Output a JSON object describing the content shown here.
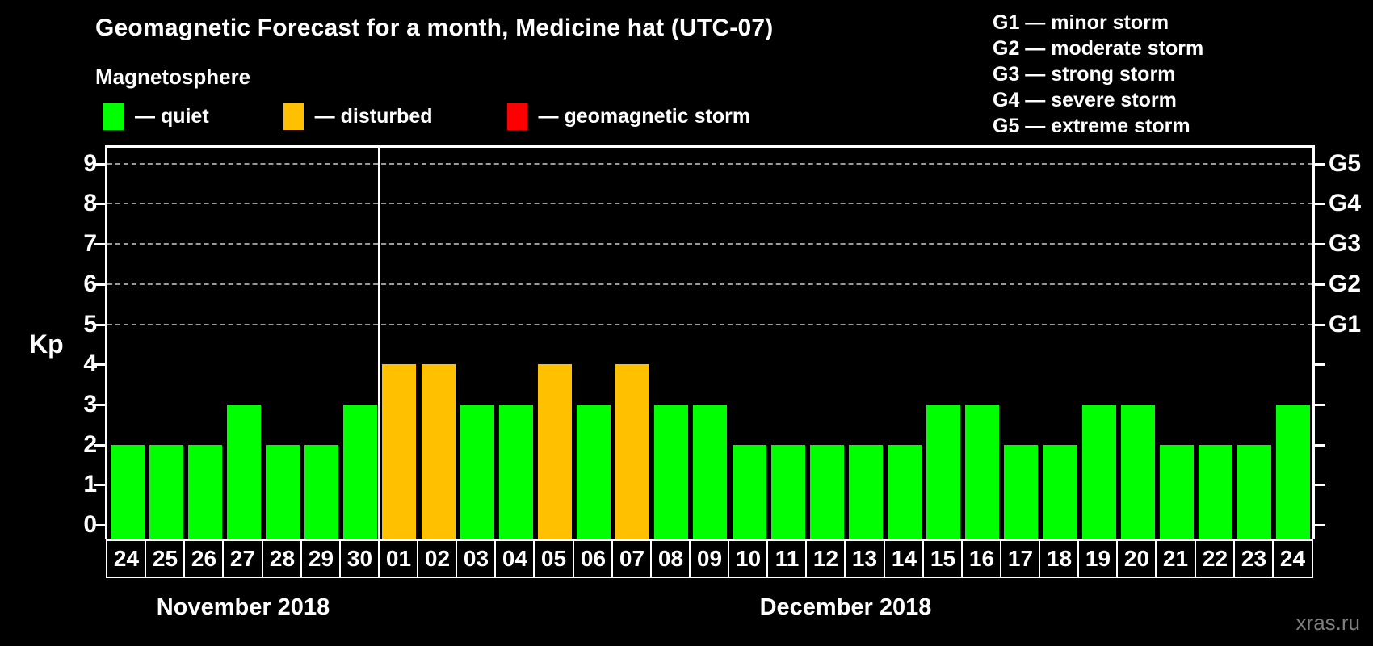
{
  "header": {
    "title": "Geomagnetic Forecast for a month, Medicine hat (UTC-07)",
    "subtitle": "Magnetosphere"
  },
  "magnetosphere_legend": [
    {
      "status": "quiet",
      "label": "— quiet",
      "color": "#00ff00"
    },
    {
      "status": "disturbed",
      "label": "— disturbed",
      "color": "#ffc000"
    },
    {
      "status": "storm",
      "label": "— geomagnetic storm",
      "color": "#ff0000"
    }
  ],
  "g_scale_legend": [
    "G1 — minor storm",
    "G2 — moderate storm",
    "G3 — strong storm",
    "G4 — severe storm",
    "G5 — extreme storm"
  ],
  "months": [
    "November 2018",
    "December 2018"
  ],
  "watermark": "xras.ru",
  "chart_data": {
    "type": "bar",
    "title": "Geomagnetic Forecast for a month, Medicine hat (UTC-07)",
    "ylabel": "Kp",
    "ylim": [
      0,
      9
    ],
    "y_ticks": [
      0,
      1,
      2,
      3,
      4,
      5,
      6,
      7,
      8,
      9
    ],
    "gridlines_at_kp": [
      5,
      6,
      7,
      8,
      9
    ],
    "right_axis_labels": [
      {
        "label": "G1",
        "kp": 5
      },
      {
        "label": "G2",
        "kp": 6
      },
      {
        "label": "G3",
        "kp": 7
      },
      {
        "label": "G4",
        "kp": 8
      },
      {
        "label": "G5",
        "kp": 9
      }
    ],
    "status_colors": {
      "quiet": "#00ff00",
      "disturbed": "#ffc000",
      "storm": "#ff0000"
    },
    "axis_color": "#ffffff",
    "gridline_color": "#9a9a9a",
    "background": "#000000",
    "legend_position": "top",
    "grid": "dashed horizontal at storm levels only",
    "bars": [
      {
        "day": "24",
        "month": 0,
        "kp": 2,
        "status": "quiet"
      },
      {
        "day": "25",
        "month": 0,
        "kp": 2,
        "status": "quiet"
      },
      {
        "day": "26",
        "month": 0,
        "kp": 2,
        "status": "quiet"
      },
      {
        "day": "27",
        "month": 0,
        "kp": 3,
        "status": "quiet"
      },
      {
        "day": "28",
        "month": 0,
        "kp": 2,
        "status": "quiet"
      },
      {
        "day": "29",
        "month": 0,
        "kp": 2,
        "status": "quiet"
      },
      {
        "day": "30",
        "month": 0,
        "kp": 3,
        "status": "quiet"
      },
      {
        "day": "01",
        "month": 1,
        "kp": 4,
        "status": "disturbed"
      },
      {
        "day": "02",
        "month": 1,
        "kp": 4,
        "status": "disturbed"
      },
      {
        "day": "03",
        "month": 1,
        "kp": 3,
        "status": "quiet"
      },
      {
        "day": "04",
        "month": 1,
        "kp": 3,
        "status": "quiet"
      },
      {
        "day": "05",
        "month": 1,
        "kp": 4,
        "status": "disturbed"
      },
      {
        "day": "06",
        "month": 1,
        "kp": 3,
        "status": "quiet"
      },
      {
        "day": "07",
        "month": 1,
        "kp": 4,
        "status": "disturbed"
      },
      {
        "day": "08",
        "month": 1,
        "kp": 3,
        "status": "quiet"
      },
      {
        "day": "09",
        "month": 1,
        "kp": 3,
        "status": "quiet"
      },
      {
        "day": "10",
        "month": 1,
        "kp": 2,
        "status": "quiet"
      },
      {
        "day": "11",
        "month": 1,
        "kp": 2,
        "status": "quiet"
      },
      {
        "day": "12",
        "month": 1,
        "kp": 2,
        "status": "quiet"
      },
      {
        "day": "13",
        "month": 1,
        "kp": 2,
        "status": "quiet"
      },
      {
        "day": "14",
        "month": 1,
        "kp": 2,
        "status": "quiet"
      },
      {
        "day": "15",
        "month": 1,
        "kp": 3,
        "status": "quiet"
      },
      {
        "day": "16",
        "month": 1,
        "kp": 3,
        "status": "quiet"
      },
      {
        "day": "17",
        "month": 1,
        "kp": 2,
        "status": "quiet"
      },
      {
        "day": "18",
        "month": 1,
        "kp": 2,
        "status": "quiet"
      },
      {
        "day": "19",
        "month": 1,
        "kp": 3,
        "status": "quiet"
      },
      {
        "day": "20",
        "month": 1,
        "kp": 3,
        "status": "quiet"
      },
      {
        "day": "21",
        "month": 1,
        "kp": 2,
        "status": "quiet"
      },
      {
        "day": "22",
        "month": 1,
        "kp": 2,
        "status": "quiet"
      },
      {
        "day": "23",
        "month": 1,
        "kp": 2,
        "status": "quiet"
      },
      {
        "day": "24",
        "month": 1,
        "kp": 3,
        "status": "quiet"
      }
    ]
  }
}
